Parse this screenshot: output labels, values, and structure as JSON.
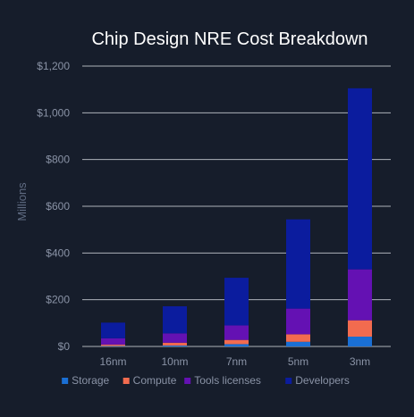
{
  "chart_data": {
    "type": "bar",
    "stacked": true,
    "title": "Chip Design NRE Cost Breakdown",
    "ylabel": "Millions",
    "xlabel": "",
    "categories": [
      "16nm",
      "10nm",
      "7nm",
      "5nm",
      "3nm"
    ],
    "ylim": [
      0,
      1200
    ],
    "yticks": [
      0,
      200,
      400,
      600,
      800,
      1000,
      1200
    ],
    "ytick_labels": [
      "$0",
      "$200",
      "$400",
      "$600",
      "$800",
      "$1,000",
      "$1,200"
    ],
    "grid": true,
    "legend_position": "bottom",
    "series": [
      {
        "name": "Storage",
        "color": "#1a6fd4",
        "values": [
          2,
          4,
          10,
          20,
          42
        ]
      },
      {
        "name": "Compute",
        "color": "#f26b4f",
        "values": [
          6,
          12,
          18,
          32,
          70
        ]
      },
      {
        "name": "Tools licenses",
        "color": "#6411b3",
        "values": [
          27,
          40,
          62,
          110,
          218
        ]
      },
      {
        "name": "Developers",
        "color": "#0b1c9e",
        "values": [
          67,
          116,
          204,
          382,
          775
        ]
      }
    ]
  },
  "colors": {
    "background": "#161d2b",
    "gridline": "#c8ccd4",
    "title_text": "#ffffff",
    "tick_text": "#8a93a6",
    "axis_label_text": "#5f6b82",
    "legend_text": "#8a93a6"
  }
}
